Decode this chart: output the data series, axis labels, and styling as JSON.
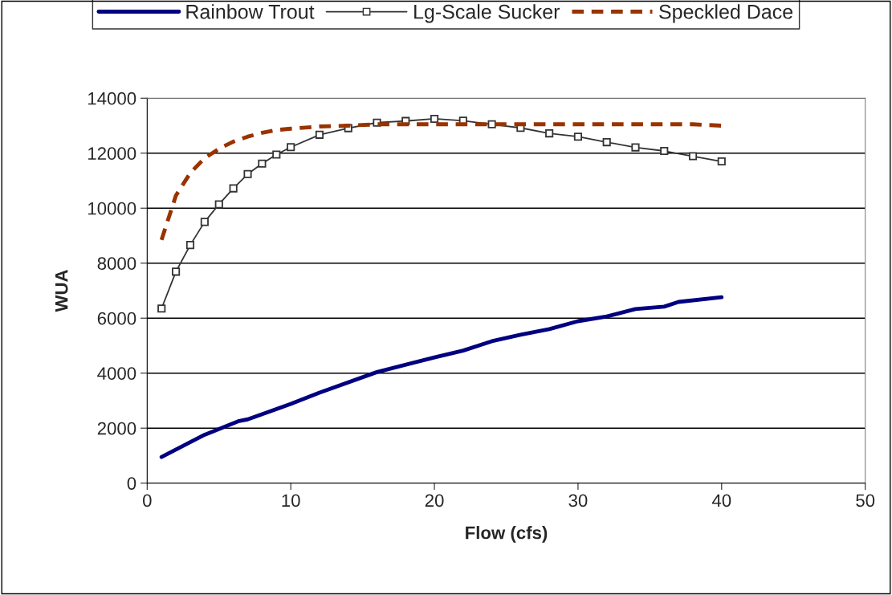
{
  "chart_data": {
    "type": "line",
    "xlabel": "Flow (cfs)",
    "ylabel": "WUA",
    "xlim": [
      0,
      50
    ],
    "xticks": [
      0,
      10,
      20,
      30,
      40,
      50
    ],
    "ylim": [
      0,
      14000
    ],
    "yticks": [
      0,
      2000,
      4000,
      6000,
      8000,
      10000,
      12000,
      14000
    ],
    "grid": "y",
    "legend": "top",
    "series": [
      {
        "name": "Rainbow Trout",
        "color": "#000080",
        "marker": "none",
        "line_style": "solid",
        "x": [
          1,
          4,
          6.4,
          7,
          10,
          12,
          16,
          20,
          22,
          24,
          26,
          28,
          30,
          32,
          34,
          36,
          37,
          40
        ],
        "values": [
          950,
          1760,
          2260,
          2320,
          2880,
          3290,
          4040,
          4570,
          4820,
          5160,
          5400,
          5600,
          5890,
          6060,
          6330,
          6420,
          6590,
          6760
        ]
      },
      {
        "name": "Lg-Scale Sucker",
        "color": "#333333",
        "marker": "square",
        "line_style": "solid",
        "x": [
          1,
          2,
          3,
          4,
          5,
          6,
          7,
          8,
          9,
          10,
          12,
          14,
          16,
          18,
          20,
          22,
          24,
          26,
          28,
          30,
          32,
          34,
          36,
          38,
          40
        ],
        "values": [
          6350,
          7690,
          8660,
          9500,
          10140,
          10720,
          11240,
          11620,
          11950,
          12220,
          12670,
          12910,
          13110,
          13170,
          13250,
          13180,
          13050,
          12920,
          12720,
          12600,
          12400,
          12210,
          12080,
          11890,
          11700
        ]
      },
      {
        "name": "Speckled Dace",
        "color": "#993300",
        "marker": "none",
        "line_style": "dashed",
        "x": [
          1,
          2,
          3,
          4,
          5,
          6,
          7,
          8,
          9,
          10,
          12,
          14,
          16,
          18,
          20,
          22,
          24,
          26,
          28,
          30,
          32,
          34,
          36,
          38,
          40
        ],
        "values": [
          8850,
          10460,
          11280,
          11820,
          12160,
          12420,
          12600,
          12740,
          12840,
          12890,
          12970,
          13000,
          13050,
          13050,
          13050,
          13050,
          13050,
          13050,
          13050,
          13050,
          13050,
          13050,
          13050,
          13050,
          13000
        ]
      }
    ]
  }
}
